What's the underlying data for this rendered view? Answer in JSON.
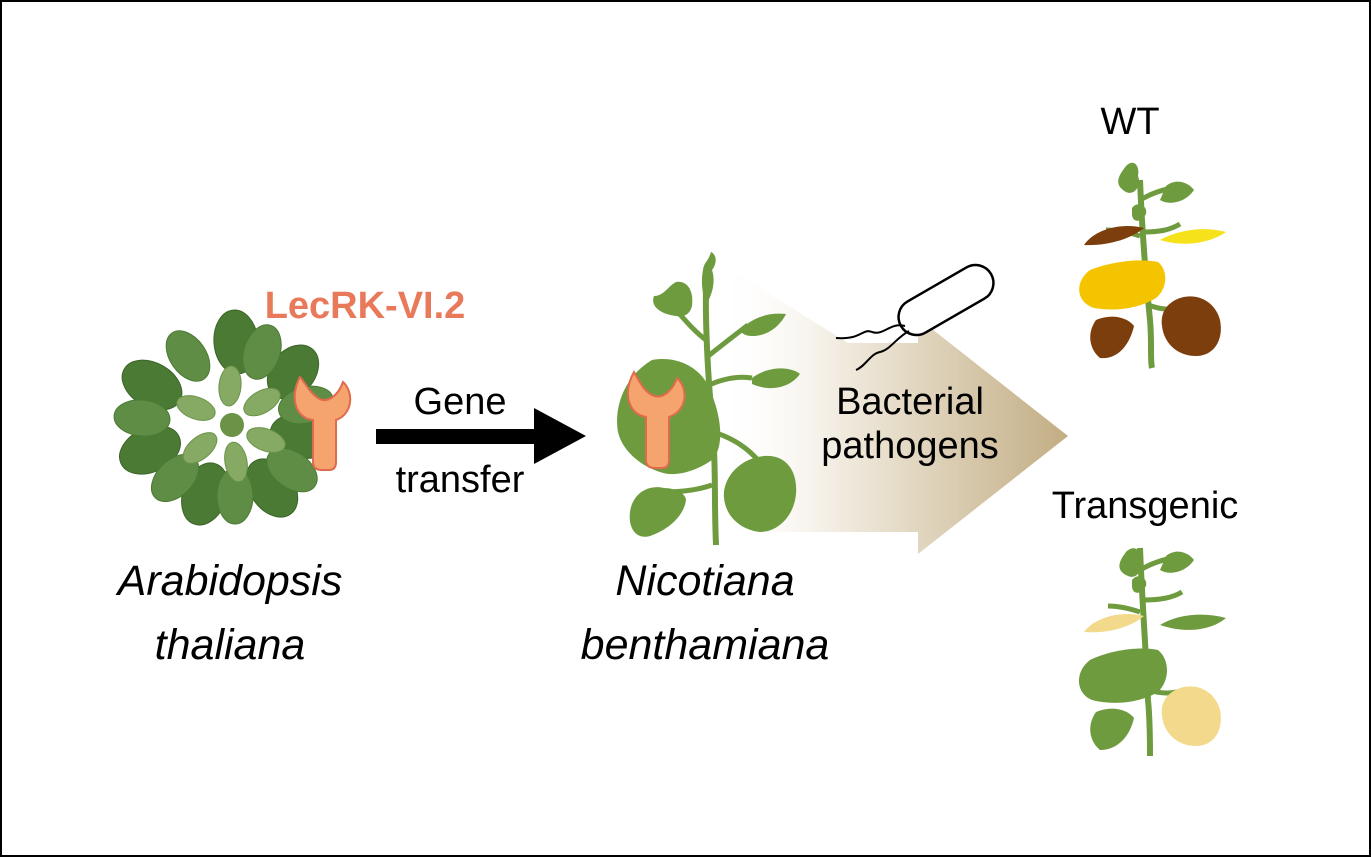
{
  "gene_name": "LecRK-VI.2",
  "transfer": {
    "line1": "Gene",
    "line2": "transfer"
  },
  "source_species": {
    "line1": "Arabidopsis",
    "line2": "thaliana"
  },
  "target_species": {
    "line1": "Nicotiana",
    "line2": "benthamiana"
  },
  "treatment": {
    "line1": "Bacterial",
    "line2": "pathogens"
  },
  "outcomes": {
    "wt_label": "WT",
    "transgenic_label": "Transgenic"
  },
  "colors": {
    "gene_text": "#e8795a",
    "receptor_fill": "#f4a46c",
    "receptor_stroke": "#e06a4e",
    "leaf_green": "#6f9b3f",
    "rosette_dark": "#4a7a33",
    "rosette_mid": "#5f8d45",
    "rosette_light": "#86aa63",
    "leaf_brown": "#7d3e0e",
    "leaf_yellow": "#f5c400",
    "leaf_bright_yellow": "#f6e21a",
    "leaf_pale_yellow": "#f3d98c",
    "arrow_gradient_end": "#c2ad83"
  }
}
